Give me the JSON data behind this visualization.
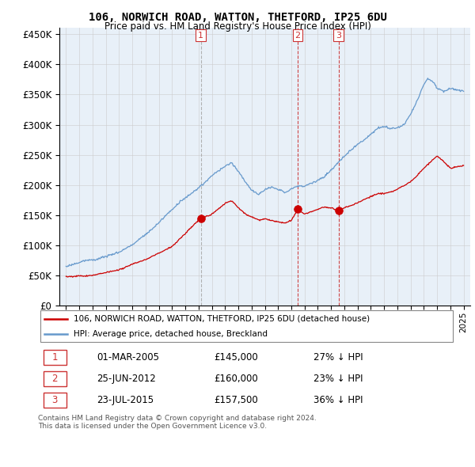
{
  "title": "106, NORWICH ROAD, WATTON, THETFORD, IP25 6DU",
  "subtitle": "Price paid vs. HM Land Registry's House Price Index (HPI)",
  "legend_label_red": "106, NORWICH ROAD, WATTON, THETFORD, IP25 6DU (detached house)",
  "legend_label_blue": "HPI: Average price, detached house, Breckland",
  "transactions": [
    {
      "num": 1,
      "date": "01-MAR-2005",
      "price": "£145,000",
      "hpi": "27% ↓ HPI",
      "year": 2005.17,
      "value": 145000
    },
    {
      "num": 2,
      "date": "25-JUN-2012",
      "price": "£160,000",
      "hpi": "23% ↓ HPI",
      "year": 2012.48,
      "value": 160000
    },
    {
      "num": 3,
      "date": "23-JUL-2015",
      "price": "£157,500",
      "hpi": "36% ↓ HPI",
      "year": 2015.56,
      "value": 157500
    }
  ],
  "footer": "Contains HM Land Registry data © Crown copyright and database right 2024.\nThis data is licensed under the Open Government Licence v3.0.",
  "ylim": [
    0,
    460000
  ],
  "yticks": [
    0,
    50000,
    100000,
    150000,
    200000,
    250000,
    300000,
    350000,
    400000,
    450000
  ],
  "xlim_start": 1994.5,
  "xlim_end": 2025.5,
  "red_color": "#cc0000",
  "blue_color": "#6699cc",
  "vline_color": "#cc3333",
  "vline1_color": "#aaaaaa",
  "background_color": "#ffffff",
  "chart_bg": "#e8f0f8",
  "grid_color": "#cccccc"
}
